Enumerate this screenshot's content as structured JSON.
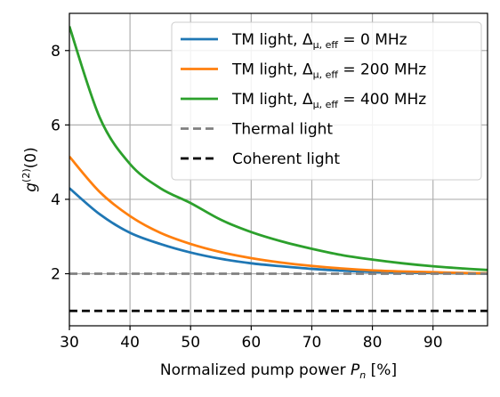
{
  "chart_data": {
    "type": "line",
    "xlabel_text": "Normalized pump power ",
    "xlabel_symbol": "P",
    "xlabel_subscript": "n",
    "xlabel_unit": " [%]",
    "ylabel_base": "g",
    "ylabel_sup": "(2)",
    "ylabel_tail": "(0)",
    "xlim": [
      30,
      99
    ],
    "ylim": [
      0.6,
      9.0
    ],
    "xticks": [
      30,
      40,
      50,
      60,
      70,
      80,
      90
    ],
    "yticks": [
      2,
      4,
      6,
      8
    ],
    "grid": true,
    "legend_position": "top-right",
    "series": [
      {
        "name": "TM light, Δμ,eff = 0 MHz",
        "legend_prefix": "TM light, ",
        "legend_sub": "μ, eff",
        "legend_suffix": " = 0 MHz",
        "color": "#1f77b4",
        "style": "solid",
        "x": [
          30,
          35,
          40,
          45,
          50,
          55,
          60,
          65,
          70,
          75,
          80,
          85,
          90,
          95,
          99
        ],
        "y": [
          4.3,
          3.6,
          3.1,
          2.8,
          2.57,
          2.4,
          2.28,
          2.2,
          2.13,
          2.08,
          2.05,
          2.03,
          2.02,
          2.01,
          2.0
        ]
      },
      {
        "name": "TM light, Δμ,eff = 200 MHz",
        "legend_prefix": "TM light, ",
        "legend_sub": "μ, eff",
        "legend_suffix": " = 200 MHz",
        "color": "#ff7f0e",
        "style": "solid",
        "x": [
          30,
          35,
          40,
          45,
          50,
          55,
          60,
          65,
          70,
          75,
          80,
          85,
          90,
          95,
          99
        ],
        "y": [
          5.15,
          4.2,
          3.55,
          3.1,
          2.8,
          2.58,
          2.42,
          2.3,
          2.21,
          2.14,
          2.09,
          2.06,
          2.04,
          2.02,
          2.01
        ]
      },
      {
        "name": "TM light, Δμ,eff = 400 MHz",
        "legend_prefix": "TM light, ",
        "legend_sub": "μ, eff",
        "legend_suffix": " = 400 MHz",
        "color": "#2ca02c",
        "style": "solid",
        "x": [
          30,
          35,
          40,
          45,
          50,
          55,
          60,
          65,
          70,
          75,
          80,
          85,
          90,
          95,
          99
        ],
        "y": [
          8.65,
          6.2,
          4.95,
          4.3,
          3.9,
          3.45,
          3.12,
          2.87,
          2.67,
          2.5,
          2.38,
          2.28,
          2.2,
          2.14,
          2.1
        ]
      },
      {
        "name": "Thermal light",
        "legend_prefix": "Thermal light",
        "color": "#808080",
        "style": "dashed",
        "x": [
          30,
          99
        ],
        "y": [
          2,
          2
        ]
      },
      {
        "name": "Coherent light",
        "legend_prefix": "Coherent light",
        "color": "#000000",
        "style": "dashed",
        "x": [
          30,
          99
        ],
        "y": [
          1,
          1
        ]
      }
    ]
  }
}
